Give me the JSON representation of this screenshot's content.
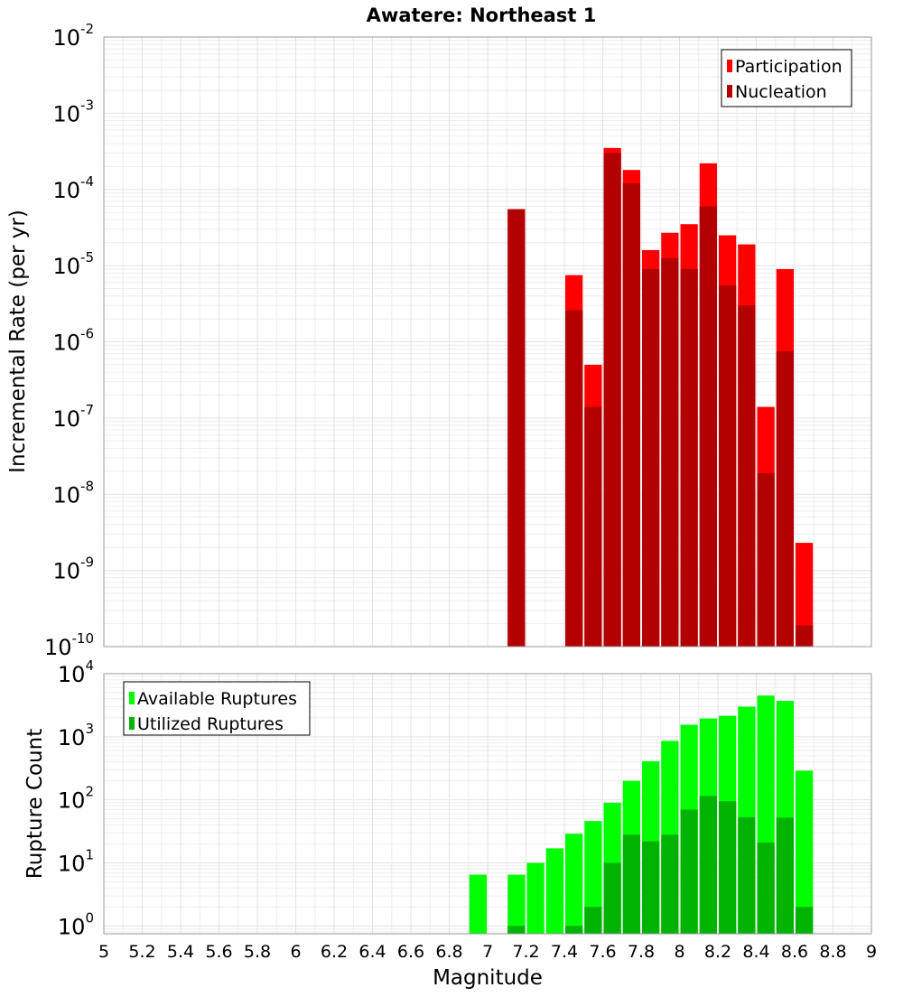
{
  "chart_data": [
    {
      "type": "bar",
      "title": "Awatere: Northeast 1",
      "ylabel": "Incremental Rate (per yr)",
      "y_scale": "log",
      "ylim": [
        1e-10,
        0.01
      ],
      "xlim": [
        5,
        9
      ],
      "bin_width": 0.1,
      "grid": true,
      "legend_position": "top-right",
      "y_tick_labels": [
        {
          "base": "10",
          "exp": "-10",
          "value": 1e-10
        },
        {
          "base": "10",
          "exp": "-9",
          "value": 1e-09
        },
        {
          "base": "10",
          "exp": "-8",
          "value": 1e-08
        },
        {
          "base": "10",
          "exp": "-7",
          "value": 1e-07
        },
        {
          "base": "10",
          "exp": "-6",
          "value": 1e-06
        },
        {
          "base": "10",
          "exp": "-5",
          "value": 1e-05
        },
        {
          "base": "10",
          "exp": "-4",
          "value": 0.0001
        },
        {
          "base": "10",
          "exp": "-3",
          "value": 0.001
        },
        {
          "base": "10",
          "exp": "-2",
          "value": 0.01
        }
      ],
      "series": [
        {
          "name": "Participation",
          "color": "#ff0000",
          "x": [
            7.15,
            7.45,
            7.55,
            7.65,
            7.75,
            7.85,
            7.95,
            8.05,
            8.15,
            8.25,
            8.35,
            8.45,
            8.55,
            8.65
          ],
          "values": [
            5.5e-05,
            7.5e-06,
            5e-07,
            0.00035,
            0.00018,
            1.6e-05,
            2.7e-05,
            3.5e-05,
            0.00022,
            2.5e-05,
            1.9e-05,
            1.4e-07,
            9e-06,
            2.3e-09
          ]
        },
        {
          "name": "Nucleation",
          "color": "#b30000",
          "x": [
            7.15,
            7.45,
            7.55,
            7.65,
            7.75,
            7.85,
            7.95,
            8.05,
            8.15,
            8.25,
            8.35,
            8.45,
            8.55,
            8.65
          ],
          "values": [
            5.5e-05,
            2.6e-06,
            1.4e-07,
            0.0003,
            0.00012,
            9e-06,
            1.25e-05,
            9e-06,
            6e-05,
            5.5e-06,
            3e-06,
            1.9e-08,
            7.5e-07,
            1.9e-10
          ]
        }
      ]
    },
    {
      "type": "bar",
      "xlabel": "Magnitude",
      "ylabel": "Rupture Count",
      "y_scale": "log",
      "ylim": [
        0.75,
        10000
      ],
      "xlim": [
        5,
        9
      ],
      "bin_width": 0.1,
      "grid": true,
      "legend_position": "top-left",
      "x_ticks": [
        5,
        5.2,
        5.4,
        5.6,
        5.8,
        6,
        6.2,
        6.4,
        6.6,
        6.8,
        7,
        7.2,
        7.4,
        7.6,
        7.8,
        8,
        8.2,
        8.4,
        8.6,
        8.8,
        9
      ],
      "x_tick_labels": [
        "5",
        "5.2",
        "5.4",
        "5.6",
        "5.8",
        "6",
        "6.2",
        "6.4",
        "6.6",
        "6.8",
        "7",
        "7.2",
        "7.4",
        "7.6",
        "7.8",
        "8",
        "8.2",
        "8.4",
        "8.6",
        "8.8",
        "9"
      ],
      "y_tick_labels": [
        {
          "base": "10",
          "exp": "0",
          "value": 1
        },
        {
          "base": "10",
          "exp": "1",
          "value": 10
        },
        {
          "base": "10",
          "exp": "2",
          "value": 100
        },
        {
          "base": "10",
          "exp": "3",
          "value": 1000
        },
        {
          "base": "10",
          "exp": "4",
          "value": 10000
        }
      ],
      "series": [
        {
          "name": "Available Ruptures",
          "color": "#00ff00",
          "x": [
            6.95,
            7.15,
            7.25,
            7.35,
            7.45,
            7.55,
            7.65,
            7.75,
            7.85,
            7.95,
            8.05,
            8.15,
            8.25,
            8.35,
            8.45,
            8.55,
            8.65
          ],
          "values": [
            6.5,
            6.5,
            10,
            17,
            29,
            46,
            90,
            200,
            410,
            860,
            1550,
            1950,
            2150,
            3000,
            4500,
            3700,
            290
          ]
        },
        {
          "name": "Utilized Ruptures",
          "color": "#00b300",
          "x": [
            7.15,
            7.45,
            7.55,
            7.65,
            7.75,
            7.85,
            7.95,
            8.05,
            8.15,
            8.25,
            8.35,
            8.45,
            8.55,
            8.65
          ],
          "values": [
            1,
            1,
            2,
            10,
            28,
            22,
            28,
            70,
            115,
            95,
            53,
            21,
            52,
            2
          ]
        }
      ]
    }
  ]
}
